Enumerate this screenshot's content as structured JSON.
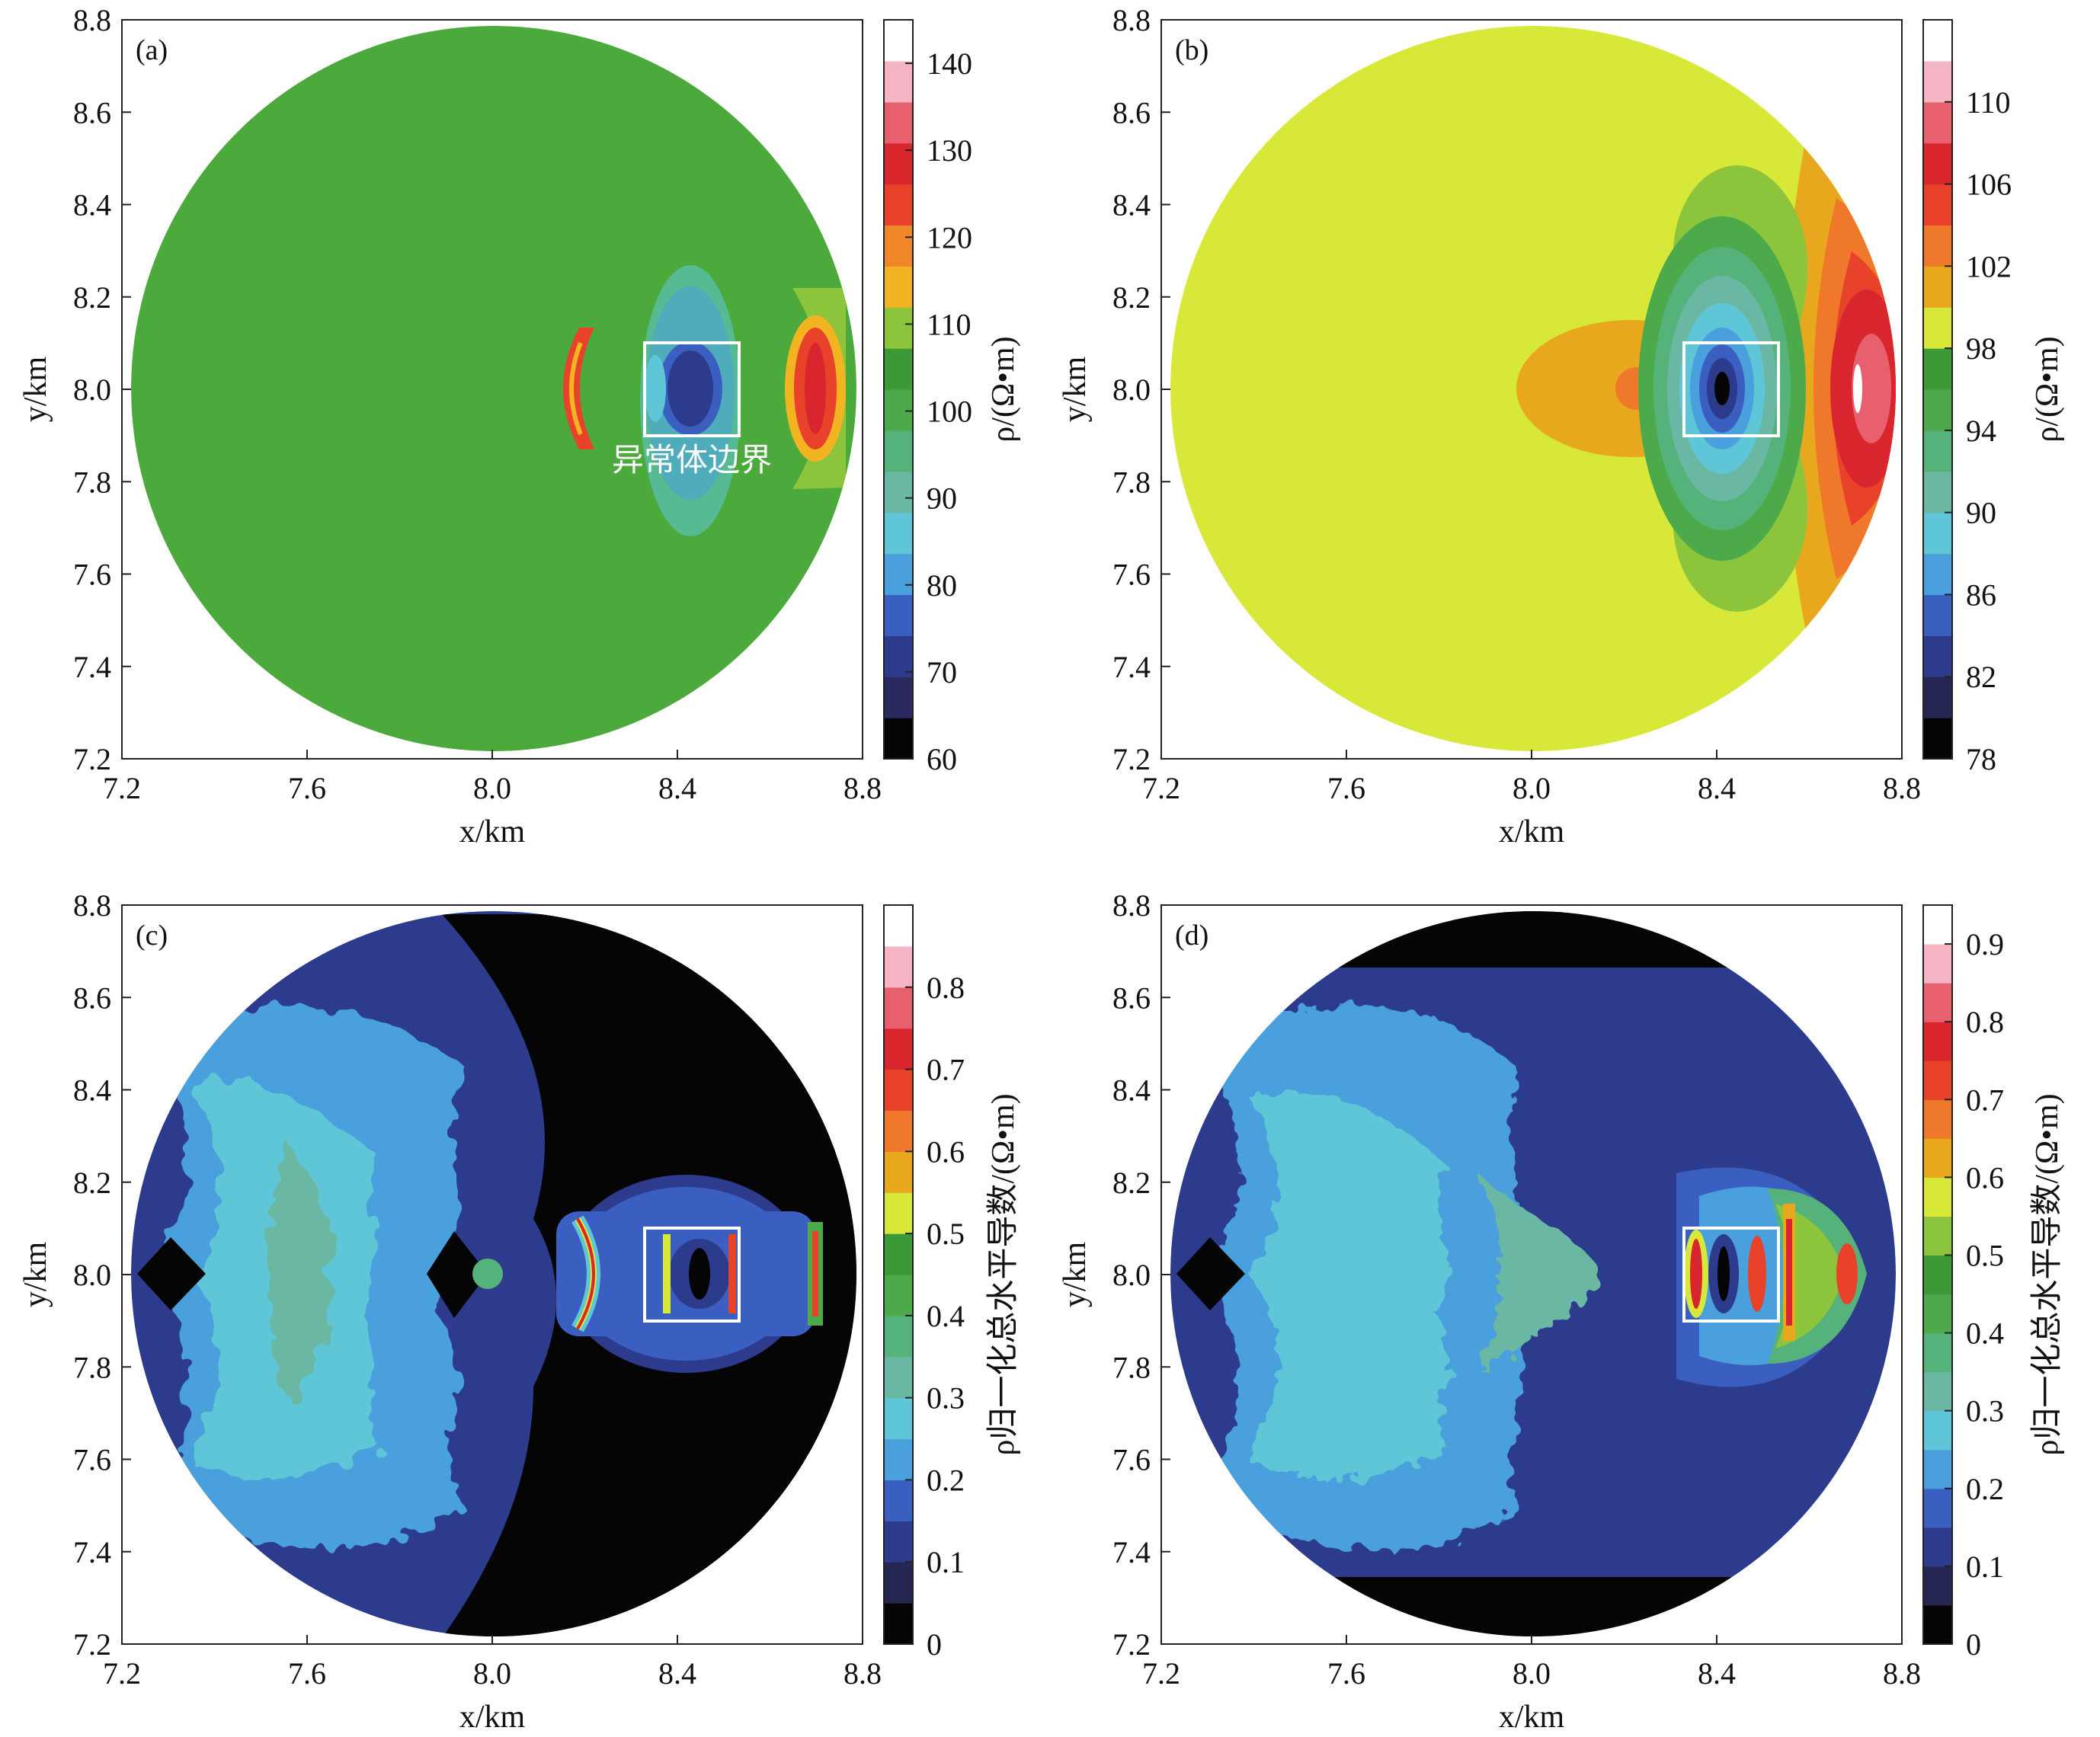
{
  "figure": {
    "panels": [
      {
        "label": "(a)",
        "annotation": "异常体边界",
        "colorbar_label": "ρ/(Ω•m)"
      },
      {
        "label": "(b)",
        "colorbar_label": "ρ/(Ω•m)"
      },
      {
        "label": "(c)",
        "colorbar_label": "ρ归一化总水平导数/(Ω•m)"
      },
      {
        "label": "(d)",
        "colorbar_label": "ρ归一化总水平导数/(Ω•m)"
      }
    ]
  },
  "chart_data": [
    {
      "type": "heatmap",
      "panel": "(a)",
      "xlabel": "x/km",
      "ylabel": "y/km",
      "xlim": [
        7.2,
        8.8
      ],
      "ylim": [
        7.2,
        8.8
      ],
      "xticks": [
        "7.2",
        "7.6",
        "8.0",
        "8.4",
        "8.8"
      ],
      "yticks": [
        "7.2",
        "7.4",
        "7.6",
        "7.8",
        "8.0",
        "8.2",
        "8.4",
        "8.6",
        "8.8"
      ],
      "domain": {
        "shape": "circle",
        "center": [
          8.0,
          8.0
        ],
        "radius": 0.78
      },
      "background_value": 100,
      "anomaly_boundary": {
        "x": [
          8.33,
          8.53
        ],
        "y": [
          7.9,
          8.1
        ],
        "label": "异常体边界"
      },
      "colorbar": {
        "label": "ρ/(Ω•m)",
        "ticks": [
          "60",
          "70",
          "80",
          "90",
          "100",
          "110",
          "120",
          "130",
          "140"
        ],
        "range": [
          60,
          145
        ],
        "colors": [
          "#050505",
          "#2a2a5e",
          "#2c3b8c",
          "#3b5fc0",
          "#4aa0dc",
          "#5fc6d8",
          "#6ab8a3",
          "#55b27a",
          "#4caa4a",
          "#3b9a35",
          "#8cc43c",
          "#f2b521",
          "#f0862a",
          "#e8432a",
          "#d9262e",
          "#e8606e",
          "#f5b5c5",
          "#ffffff"
        ]
      }
    },
    {
      "type": "heatmap",
      "panel": "(b)",
      "xlabel": "x/km",
      "ylabel": "y/km",
      "xlim": [
        7.2,
        8.8
      ],
      "ylim": [
        7.2,
        8.8
      ],
      "xticks": [
        "7.2",
        "7.6",
        "8.0",
        "8.4",
        "8.8"
      ],
      "yticks": [
        "7.2",
        "7.4",
        "7.6",
        "7.8",
        "8.0",
        "8.2",
        "8.4",
        "8.6",
        "8.8"
      ],
      "domain": {
        "shape": "circle",
        "center": [
          8.0,
          8.0
        ],
        "radius": 0.78
      },
      "background_value": 100,
      "anomaly_boundary": {
        "x": [
          8.33,
          8.53
        ],
        "y": [
          7.9,
          8.1
        ]
      },
      "colorbar": {
        "label": "ρ/(Ω•m)",
        "ticks": [
          "78",
          "82",
          "86",
          "90",
          "94",
          "98",
          "102",
          "106",
          "110"
        ],
        "range": [
          78,
          114
        ],
        "colors": [
          "#050505",
          "#262652",
          "#2c3b8c",
          "#3b5fc0",
          "#4aa0dc",
          "#5fc6d8",
          "#6ab8a3",
          "#55b27a",
          "#4caa4a",
          "#3b9a35",
          "#d8e838",
          "#e8a81e",
          "#f0782a",
          "#e8432a",
          "#d9262e",
          "#e8606e",
          "#f5b5c5",
          "#ffffff"
        ]
      }
    },
    {
      "type": "heatmap",
      "panel": "(c)",
      "xlabel": "x/km",
      "ylabel": "y/km",
      "xlim": [
        7.2,
        8.8
      ],
      "ylim": [
        7.2,
        8.8
      ],
      "xticks": [
        "7.2",
        "7.6",
        "8.0",
        "8.4",
        "8.8"
      ],
      "yticks": [
        "7.2",
        "7.4",
        "7.6",
        "7.8",
        "8.0",
        "8.2",
        "8.4",
        "8.6",
        "8.8"
      ],
      "domain": {
        "shape": "circle",
        "center": [
          8.0,
          8.0
        ],
        "radius": 0.78
      },
      "anomaly_boundary": {
        "x": [
          8.33,
          8.53
        ],
        "y": [
          7.9,
          8.1
        ]
      },
      "colorbar": {
        "label": "ρ归一化总水平导数/(Ω•m)",
        "ticks": [
          "0",
          "0.1",
          "0.2",
          "0.3",
          "0.4",
          "0.5",
          "0.6",
          "0.7",
          "0.8"
        ],
        "range": [
          0,
          0.9
        ],
        "colors": [
          "#050505",
          "#262652",
          "#2c3b8c",
          "#3b5fc0",
          "#4aa0dc",
          "#5fc6d8",
          "#6ab8a3",
          "#55b27a",
          "#4caa4a",
          "#3b9a35",
          "#d8e838",
          "#e8a81e",
          "#f0782a",
          "#e8432a",
          "#d9262e",
          "#e8606e",
          "#f5b5c5",
          "#ffffff"
        ]
      }
    },
    {
      "type": "heatmap",
      "panel": "(d)",
      "xlabel": "x/km",
      "ylabel": "y/km",
      "xlim": [
        7.2,
        8.8
      ],
      "ylim": [
        7.2,
        8.8
      ],
      "xticks": [
        "7.2",
        "7.6",
        "8.0",
        "8.4",
        "8.8"
      ],
      "yticks": [
        "7.2",
        "7.4",
        "7.6",
        "7.8",
        "8.0",
        "8.2",
        "8.4",
        "8.6",
        "8.8"
      ],
      "domain": {
        "shape": "circle",
        "center": [
          8.0,
          8.0
        ],
        "radius": 0.78
      },
      "anomaly_boundary": {
        "x": [
          8.33,
          8.53
        ],
        "y": [
          7.9,
          8.1
        ]
      },
      "colorbar": {
        "label": "ρ归一化总水平导数/(Ω•m)",
        "ticks": [
          "0",
          "0.1",
          "0.2",
          "0.3",
          "0.4",
          "0.5",
          "0.6",
          "0.7",
          "0.8",
          "0.9"
        ],
        "range": [
          0,
          0.95
        ],
        "colors": [
          "#050505",
          "#262652",
          "#2c3b8c",
          "#3b5fc0",
          "#4aa0dc",
          "#5fc6d8",
          "#6ab8a3",
          "#55b27a",
          "#4caa4a",
          "#3b9a35",
          "#8cc43c",
          "#d8e838",
          "#e8a81e",
          "#f0782a",
          "#e8432a",
          "#d9262e",
          "#e8606e",
          "#f5b5c5",
          "#ffffff"
        ]
      }
    }
  ]
}
